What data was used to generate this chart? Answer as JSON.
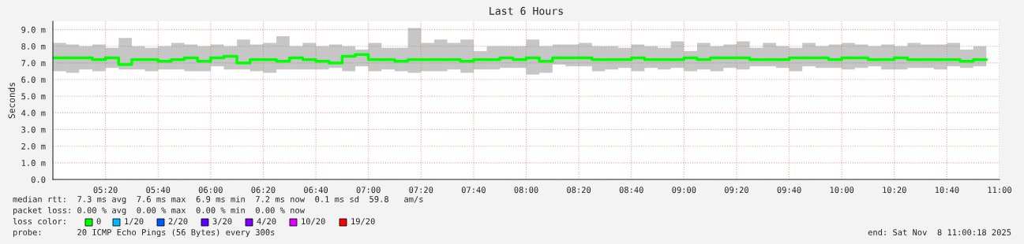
{
  "chart_data": {
    "type": "step",
    "title": "Last 6 Hours",
    "ylabel": "Seconds",
    "x": [
      5.0,
      5.0833,
      5.1667,
      5.25,
      5.3333,
      5.4167,
      5.5,
      5.5833,
      5.6667,
      5.75,
      5.8333,
      5.9167,
      6.0,
      6.0833,
      6.1667,
      6.25,
      6.3333,
      6.4167,
      6.5,
      6.5833,
      6.6667,
      6.75,
      6.8333,
      6.9167,
      7.0,
      7.0833,
      7.1667,
      7.25,
      7.3333,
      7.4167,
      7.5,
      7.5833,
      7.6667,
      7.75,
      7.8333,
      7.9167,
      8.0,
      8.0833,
      8.1667,
      8.25,
      8.3333,
      8.4167,
      8.5,
      8.5833,
      8.6667,
      8.75,
      8.8333,
      8.9167,
      9.0,
      9.0833,
      9.1667,
      9.25,
      9.3333,
      9.4167,
      9.5,
      9.5833,
      9.6667,
      9.75,
      9.8333,
      9.9167,
      10.0,
      10.0833,
      10.1667,
      10.25,
      10.3333,
      10.4167,
      10.5,
      10.5833,
      10.6667,
      10.75,
      10.8333,
      10.9167
    ],
    "series": [
      {
        "color": "#00ff00",
        "values": [
          7.3,
          7.3,
          7.3,
          7.2,
          7.3,
          6.9,
          7.2,
          7.2,
          7.1,
          7.2,
          7.3,
          7.1,
          7.3,
          7.4,
          7.0,
          7.2,
          7.2,
          7.1,
          7.3,
          7.2,
          7.1,
          7.0,
          7.4,
          7.5,
          7.2,
          7.2,
          7.1,
          7.2,
          7.2,
          7.2,
          7.2,
          7.1,
          7.2,
          7.2,
          7.3,
          7.2,
          7.3,
          7.1,
          7.3,
          7.3,
          7.3,
          7.2,
          7.2,
          7.2,
          7.3,
          7.2,
          7.2,
          7.2,
          7.3,
          7.2,
          7.3,
          7.3,
          7.3,
          7.2,
          7.2,
          7.2,
          7.3,
          7.3,
          7.3,
          7.2,
          7.3,
          7.3,
          7.2,
          7.2,
          7.3,
          7.2,
          7.2,
          7.2,
          7.2,
          7.1,
          7.2,
          7.2
        ],
        "lower": [
          6.5,
          6.4,
          6.6,
          6.5,
          6.7,
          6.6,
          6.6,
          6.5,
          6.6,
          6.6,
          6.5,
          6.5,
          6.8,
          6.6,
          6.6,
          6.5,
          6.4,
          6.6,
          6.6,
          6.6,
          6.6,
          6.7,
          6.5,
          6.8,
          6.5,
          6.6,
          6.5,
          6.4,
          6.5,
          6.5,
          6.6,
          6.4,
          6.6,
          6.6,
          6.7,
          6.7,
          6.3,
          6.4,
          6.9,
          6.8,
          6.8,
          6.5,
          6.6,
          6.7,
          6.5,
          6.7,
          6.6,
          6.7,
          6.5,
          6.6,
          6.5,
          6.7,
          6.6,
          6.8,
          6.8,
          6.7,
          6.5,
          6.8,
          6.7,
          6.7,
          6.6,
          6.7,
          6.8,
          6.6,
          6.6,
          6.7,
          6.7,
          6.6,
          6.8,
          6.7,
          6.8,
          6.8
        ],
        "upper": [
          8.2,
          8.1,
          8.0,
          8.1,
          7.9,
          8.5,
          8.0,
          7.9,
          8.0,
          8.2,
          8.1,
          8.0,
          8.1,
          8.0,
          8.4,
          8.1,
          8.2,
          8.6,
          8.0,
          8.2,
          8.0,
          8.1,
          8.0,
          7.8,
          8.2,
          7.9,
          7.9,
          9.1,
          8.2,
          8.4,
          8.2,
          8.4,
          7.7,
          8.0,
          8.0,
          8.0,
          8.4,
          8.0,
          8.1,
          8.1,
          8.2,
          8.0,
          8.0,
          7.9,
          8.1,
          8.0,
          7.9,
          8.3,
          7.7,
          8.2,
          8.0,
          8.1,
          8.3,
          7.9,
          8.2,
          8.0,
          7.9,
          8.2,
          8.0,
          8.1,
          8.2,
          8.1,
          8.0,
          8.1,
          8.0,
          8.2,
          8.1,
          8.1,
          8.2,
          7.8,
          8.0,
          8.0
        ]
      }
    ],
    "xlim": [
      5.0,
      11.0
    ],
    "xticks": [
      {
        "value": 5.3333,
        "label": "05:20"
      },
      {
        "value": 5.6667,
        "label": "05:40"
      },
      {
        "value": 6.0,
        "label": "06:00"
      },
      {
        "value": 6.3333,
        "label": "06:20"
      },
      {
        "value": 6.6667,
        "label": "06:40"
      },
      {
        "value": 7.0,
        "label": "07:00"
      },
      {
        "value": 7.3333,
        "label": "07:20"
      },
      {
        "value": 7.6667,
        "label": "07:40"
      },
      {
        "value": 8.0,
        "label": "08:00"
      },
      {
        "value": 8.3333,
        "label": "08:20"
      },
      {
        "value": 8.6667,
        "label": "08:40"
      },
      {
        "value": 9.0,
        "label": "09:00"
      },
      {
        "value": 9.3333,
        "label": "09:20"
      },
      {
        "value": 9.6667,
        "label": "09:40"
      },
      {
        "value": 10.0,
        "label": "10:00"
      },
      {
        "value": 10.3333,
        "label": "10:20"
      },
      {
        "value": 10.6667,
        "label": "10:40"
      },
      {
        "value": 11.0,
        "label": "11:00"
      }
    ],
    "ylim": [
      0,
      9.5
    ],
    "yticks": [
      {
        "value": 0,
        "label": "0.0"
      },
      {
        "value": 1,
        "label": "1.0 m"
      },
      {
        "value": 2,
        "label": "2.0 m"
      },
      {
        "value": 3,
        "label": "3.0 m"
      },
      {
        "value": 4,
        "label": "4.0 m"
      },
      {
        "value": 5,
        "label": "5.0 m"
      },
      {
        "value": 6,
        "label": "6.0 m"
      },
      {
        "value": 7,
        "label": "7.0 m"
      },
      {
        "value": 8,
        "label": "8.0 m"
      },
      {
        "value": 9,
        "label": "9.0 m"
      }
    ],
    "grid": true,
    "annotations": [
      "median rtt:  7.3 ms avg  7.6 ms max  6.9 ms min  7.2 ms now  0.1 ms sd  59.8   am/s",
      "packet loss: 0.00 % avg  0.00 % max  0.00 % min  0.00 % now",
      "loss color:",
      "0",
      "1/20",
      "2/20",
      "3/20",
      "4/20",
      "10/20",
      "19/20",
      "probe:       20 ICMP Echo Pings (56 Bytes) every 300s",
      "end: Sat Nov  8 11:00:18 2025"
    ]
  }
}
